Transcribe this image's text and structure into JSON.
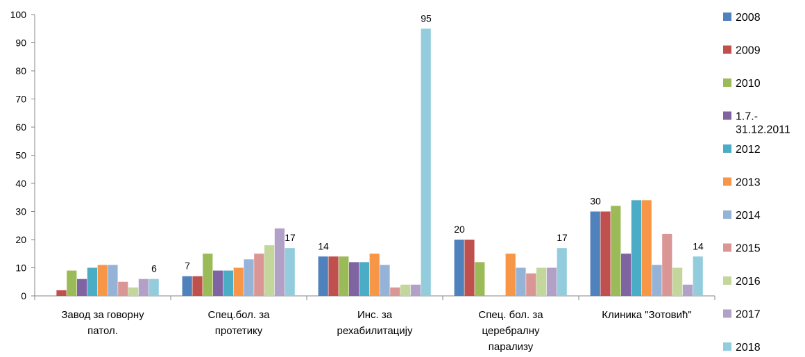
{
  "chart_data": {
    "type": "bar",
    "categories": [
      [
        "Завод за говорну",
        "патол."
      ],
      [
        "Спец.бол. за",
        "протетику"
      ],
      [
        "Инс. за",
        "рехабилитацију"
      ],
      [
        "Спец. бол. за",
        "церебралну",
        "парализу"
      ],
      [
        "Клиника \"Зотовић\""
      ]
    ],
    "series": [
      {
        "name": "2008",
        "color": "#4F81BD",
        "values": [
          0,
          7,
          14,
          20,
          30
        ]
      },
      {
        "name": "2009",
        "color": "#C0504D",
        "values": [
          2,
          7,
          14,
          20,
          30
        ]
      },
      {
        "name": "2010",
        "color": "#9BBB59",
        "values": [
          9,
          15,
          14,
          12,
          32
        ]
      },
      {
        "name": [
          "1.7.-",
          "31.12.2011"
        ],
        "color": "#8064A2",
        "values": [
          6,
          9,
          12,
          0,
          15
        ]
      },
      {
        "name": "2012",
        "color": "#4BACC6",
        "values": [
          10,
          9,
          12,
          0,
          34
        ]
      },
      {
        "name": "2013",
        "color": "#F79646",
        "values": [
          11,
          10,
          15,
          15,
          34
        ]
      },
      {
        "name": "2014",
        "color": "#95B3D7",
        "values": [
          11,
          13,
          11,
          10,
          11
        ]
      },
      {
        "name": "2015",
        "color": "#D99694",
        "values": [
          5,
          15,
          3,
          8,
          22
        ]
      },
      {
        "name": "2016",
        "color": "#C3D69B",
        "values": [
          3,
          18,
          4,
          10,
          10
        ]
      },
      {
        "name": "2017",
        "color": "#B2A1C7",
        "values": [
          6,
          24,
          4,
          10,
          4
        ]
      },
      {
        "name": "2018",
        "color": "#93CDDD",
        "values": [
          6,
          17,
          95,
          17,
          14
        ]
      }
    ],
    "data_labels": [
      {
        "category": 0,
        "series": 10,
        "text": "6"
      },
      {
        "category": 1,
        "series": 0,
        "text": "7"
      },
      {
        "category": 1,
        "series": 10,
        "text": "17"
      },
      {
        "category": 2,
        "series": 0,
        "text": "14"
      },
      {
        "category": 2,
        "series": 10,
        "text": "95"
      },
      {
        "category": 3,
        "series": 0,
        "text": "20"
      },
      {
        "category": 3,
        "series": 10,
        "text": "17"
      },
      {
        "category": 4,
        "series": 0,
        "text": "30"
      },
      {
        "category": 4,
        "series": 10,
        "text": "14"
      }
    ],
    "yticks": [
      0,
      10,
      20,
      30,
      40,
      50,
      60,
      70,
      80,
      90,
      100
    ],
    "ylim": [
      0,
      100
    ],
    "grid": false,
    "legend_position": "right"
  }
}
